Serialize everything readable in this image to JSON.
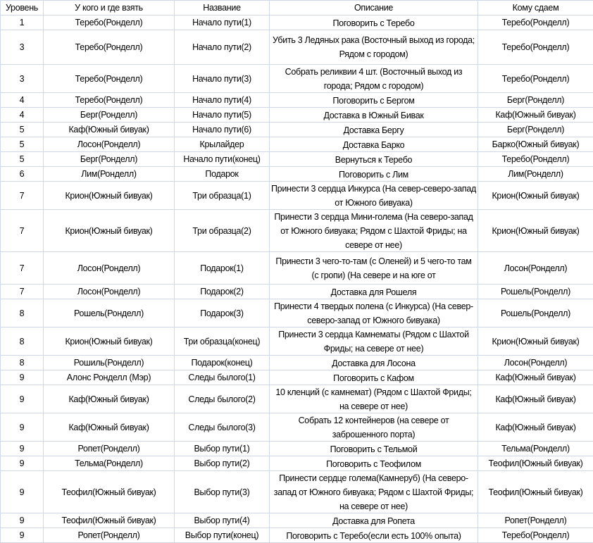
{
  "headers": [
    "Уровень",
    "У кого и где взять",
    "Название",
    "Описание",
    "Кому сдаем"
  ],
  "gridline_color": "#d0d7e5",
  "rows": [
    {
      "level": "1",
      "giver": "Теребо(Ронделл)",
      "name": "Начало пути(1)",
      "desc": "Поговорить с Теребо",
      "turnin": "Теребо(Ронделл)"
    },
    {
      "level": "3",
      "giver": "Теребо(Ронделл)",
      "name": "Начало пути(2)",
      "desc": "Убить 3 Ледяных рака  (Восточный выход из города; Рядом с городом)",
      "turnin": "Теребо(Ронделл)"
    },
    {
      "level": "3",
      "giver": "Теребо(Ронделл)",
      "name": "Начало пути(3)",
      "desc": "Собрать реликвии 4 шт.  (Восточный выход из города; Рядом с городом)",
      "turnin": "Теребо(Ронделл)"
    },
    {
      "level": "4",
      "giver": "Теребо(Ронделл)",
      "name": "Начало пути(4)",
      "desc": "Поговорить с Бергом",
      "turnin": "Берг(Ронделл)"
    },
    {
      "level": "4",
      "giver": "Берг(Ронделл)",
      "name": "Начало пути(5)",
      "desc": "Доставка в Южный Бивак",
      "turnin": "Каф(Южный бивуак)"
    },
    {
      "level": "5",
      "giver": "Каф(Южный бивуак)",
      "name": "Начало пути(6)",
      "desc": "Доставка Бергу",
      "turnin": "Берг(Ронделл)"
    },
    {
      "level": "5",
      "giver": "Лосон(Ронделл)",
      "name": "Крылайдер",
      "desc": "Доставка Барко",
      "turnin": "Барко(Южный бивуак)"
    },
    {
      "level": "5",
      "giver": "Берг(Ронделл)",
      "name": "Начало пути(конец)",
      "desc": "Вернуться к Теребо",
      "turnin": "Теребо(Ронделл)"
    },
    {
      "level": "6",
      "giver": "Лим(Ронделл)",
      "name": "Подарок",
      "desc": "Поговорить с Лим",
      "turnin": "Лим(Ронделл)"
    },
    {
      "level": "7",
      "giver": "Крион(Южный бивуак)",
      "name": "Три образца(1)",
      "desc": "Принести 3 сердца Инкурса (На север-северо-запад от Южного бивуака)",
      "turnin": "Крион(Южный бивуак)"
    },
    {
      "level": "7",
      "giver": "Крион(Южный бивуак)",
      "name": "Три образца(2)",
      "desc": "Принести 3 сердца Мини-голема (На северо-запад от Южного бивуака; Рядом с Шахтой Фриды; на севере от нее)",
      "turnin": "Крион(Южный бивуак)"
    },
    {
      "level": "7",
      "giver": "Лосон(Ронделл)",
      "name": "Подарок(1)",
      "desc": "Принести 3 чего-то-там (с Оленей) и 5 чего-то там (с гропи) (На севере и на юге от",
      "turnin": "Лосон(Ронделл)"
    },
    {
      "level": "7",
      "giver": "Лосон(Ронделл)",
      "name": "Подарок(2)",
      "desc": "Доставка для Рошеля",
      "turnin": "Рошель(Ронделл)"
    },
    {
      "level": "8",
      "giver": "Рошель(Ронделл)",
      "name": "Подарок(3)",
      "desc": "Принести 4 твердых полена (с Инкурса) (На север-северо-запад от Южного бивуака)",
      "turnin": "Рошель(Ронделл)"
    },
    {
      "level": "8",
      "giver": "Крион(Южный бивуак)",
      "name": "Три образца(конец)",
      "desc": "Принести 3 сердца Камнематы (Рядом с Шахтой Фриды; на севере от нее)",
      "turnin": "Крион(Южный бивуак)"
    },
    {
      "level": "8",
      "giver": "Рошиль(Ронделл)",
      "name": "Подарок(конец)",
      "desc": "Доставка для Лосона",
      "turnin": "Лосон(Ронделл)"
    },
    {
      "level": "9",
      "giver": "Алонс Ронделл (Мэр)",
      "name": "Следы былого(1)",
      "desc": "Поговорить с Кафом",
      "turnin": "Каф(Южный бивуак)"
    },
    {
      "level": "9",
      "giver": "Каф(Южный бивуак)",
      "name": "Следы былого(2)",
      "desc": "10 кленций (с камнемат) (Рядом с Шахтой Фриды; на севере от нее)",
      "turnin": "Каф(Южный бивуак)"
    },
    {
      "level": "9",
      "giver": "Каф(Южный бивуак)",
      "name": "Следы былого(3)",
      "desc": "Собрать 12 контейнеров (на севере от заброшенного порта)",
      "turnin": "Каф(Южный бивуак)"
    },
    {
      "level": "9",
      "giver": "Ропет(Ронделл)",
      "name": "Выбор пути(1)",
      "desc": "Поговорить с Тельмой",
      "turnin": "Тельма(Ронделл)"
    },
    {
      "level": "9",
      "giver": "Тельма(Ронделл)",
      "name": "Выбор пути(2)",
      "desc": "Поговорить с Теофилом",
      "turnin": "Теофил(Южный бивуак)"
    },
    {
      "level": "9",
      "giver": "Теофил(Южный бивуак)",
      "name": "Выбор пути(3)",
      "desc": "Принести сердце голема(Камнеруб) (На северо-запад от Южного бивуака; Рядом с Шахтой Фриды; на севере от нее)",
      "turnin": "Теофил(Южный бивуак)"
    },
    {
      "level": "9",
      "giver": "Теофил(Южный бивуак)",
      "name": "Выбор пути(4)",
      "desc": "Доставка для Ропета",
      "turnin": "Ропет(Ронделл)"
    },
    {
      "level": "9",
      "giver": "Ропет(Ронделл)",
      "name": "Выбор пути(конец)",
      "desc": "Поговорить с Теребо(если есть 100% опыта)",
      "turnin": "Теребо(Ронделл)"
    }
  ]
}
